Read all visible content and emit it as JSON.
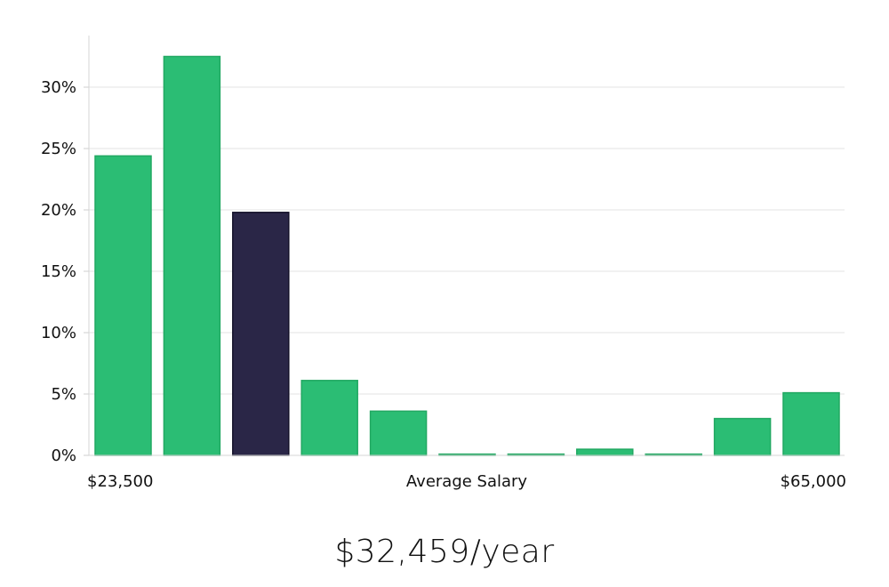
{
  "chart_data": {
    "type": "bar",
    "title": "",
    "xlabel": "Average Salary",
    "ylabel": "",
    "x_start_label": "$23,500",
    "x_end_label": "$65,000",
    "ylim": [
      0,
      35
    ],
    "yticks": [
      0,
      5,
      10,
      15,
      20,
      25,
      30
    ],
    "ytick_labels": [
      "0%",
      "5%",
      "10%",
      "15%",
      "20%",
      "25%",
      "30%"
    ],
    "values": [
      24.4,
      32.5,
      19.8,
      6.1,
      3.6,
      0.1,
      0.1,
      0.5,
      0.1,
      3.0,
      5.1
    ],
    "highlight_index": 2,
    "bar_color": "#2bbd74",
    "bar_edge_color": "#21a862",
    "highlight_color": "#2a2647",
    "highlight_edge_color": "#14122a",
    "grid_color": "#e3e3e3"
  },
  "summary": {
    "salary_text": "$32,459/year"
  }
}
